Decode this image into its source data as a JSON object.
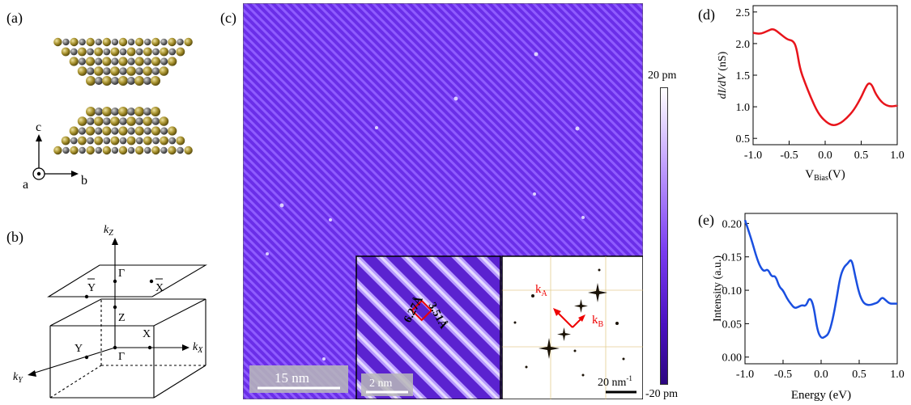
{
  "panels": {
    "a": "(a)",
    "b": "(b)",
    "c": "(c)",
    "d": "(d)",
    "e": "(e)"
  },
  "crystal_axes": {
    "c": "c",
    "a": "a",
    "b": "b"
  },
  "brillouin_zone": {
    "kz": "k",
    "kz_sub": "Z",
    "kx": "k",
    "kx_sub": "X",
    "ky": "k",
    "ky_sub": "Y",
    "points": {
      "Ybar": "Y",
      "Gammabar": "Γ",
      "Xbar": "X",
      "Z": "Z",
      "X": "X",
      "Y": "Y",
      "Gamma": "Γ"
    }
  },
  "stm": {
    "scalebar_main": "15 nm",
    "inset_real": {
      "scalebar": "2 nm",
      "lattice_a": "6.27Å",
      "lattice_b": "3.51Å"
    },
    "inset_fft": {
      "scalebar": "20 nm",
      "scalebar_sup": "-1",
      "kA": "k",
      "kA_sub": "A",
      "kB": "k",
      "kB_sub": "B"
    },
    "colorbar": {
      "top": "20 pm",
      "bottom": "-20 pm"
    }
  },
  "chart_data": [
    {
      "id": "d",
      "type": "line",
      "xlabel": "V",
      "xlabel_sub": "Bias",
      "xlabel_suffix": "(V)",
      "ylabel": "dI/dV (nS)",
      "xlim": [
        -1.0,
        1.0
      ],
      "ylim": [
        0.4,
        2.6
      ],
      "xticks": [
        "-1.0",
        "-0.5",
        "0.0",
        "0.5",
        "1.0"
      ],
      "yticks": [
        "0.5",
        "1.0",
        "1.5",
        "2.0",
        "2.5"
      ],
      "color": "#e8141b",
      "x": [
        -1.0,
        -0.9,
        -0.8,
        -0.72,
        -0.62,
        -0.52,
        -0.45,
        -0.4,
        -0.35,
        -0.28,
        -0.2,
        -0.1,
        0.0,
        0.1,
        0.2,
        0.3,
        0.4,
        0.5,
        0.55,
        0.6,
        0.65,
        0.7,
        0.8,
        0.9,
        1.0
      ],
      "y": [
        2.17,
        2.15,
        2.2,
        2.24,
        2.15,
        2.06,
        2.05,
        1.95,
        1.6,
        1.38,
        1.15,
        0.9,
        0.77,
        0.7,
        0.73,
        0.82,
        0.95,
        1.15,
        1.28,
        1.38,
        1.35,
        1.2,
        1.05,
        1.0,
        1.02
      ]
    },
    {
      "id": "e",
      "type": "line",
      "xlabel": "Energy (eV)",
      "ylabel": "Intensity (a.u.)",
      "xlim": [
        -1.0,
        1.0
      ],
      "ylim": [
        -0.01,
        0.215
      ],
      "xticks": [
        "-1.0",
        "-0.5",
        "0.0",
        "0.5",
        "1.0"
      ],
      "yticks": [
        "0.00",
        "0.05",
        "0.10",
        "0.15",
        "0.20"
      ],
      "color": "#1a4fe0",
      "x": [
        -1.0,
        -0.95,
        -0.9,
        -0.85,
        -0.8,
        -0.75,
        -0.7,
        -0.65,
        -0.6,
        -0.55,
        -0.5,
        -0.45,
        -0.4,
        -0.35,
        -0.3,
        -0.25,
        -0.2,
        -0.15,
        -0.1,
        -0.05,
        0.0,
        0.05,
        0.1,
        0.15,
        0.2,
        0.25,
        0.3,
        0.35,
        0.4,
        0.45,
        0.5,
        0.55,
        0.6,
        0.65,
        0.7,
        0.75,
        0.8,
        0.85,
        0.9,
        0.95,
        1.0
      ],
      "y": [
        0.205,
        0.188,
        0.17,
        0.15,
        0.135,
        0.128,
        0.132,
        0.12,
        0.122,
        0.105,
        0.1,
        0.088,
        0.08,
        0.073,
        0.075,
        0.078,
        0.076,
        0.09,
        0.078,
        0.04,
        0.028,
        0.03,
        0.035,
        0.055,
        0.085,
        0.12,
        0.135,
        0.14,
        0.148,
        0.12,
        0.095,
        0.082,
        0.078,
        0.078,
        0.08,
        0.082,
        0.09,
        0.085,
        0.08,
        0.08,
        0.08
      ]
    }
  ]
}
